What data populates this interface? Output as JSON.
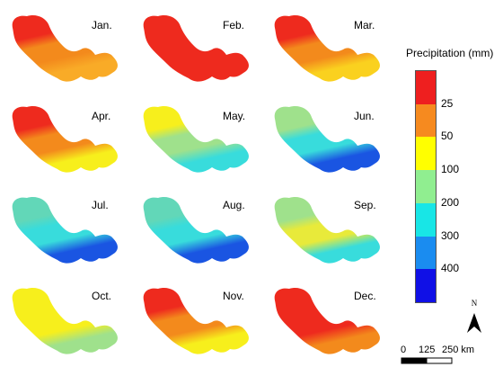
{
  "months": [
    {
      "label": "Jan.",
      "zones": [
        "#ee2a1e",
        "#f38a1c",
        "#f9ab27"
      ]
    },
    {
      "label": "Feb.",
      "zones": [
        "#ee2a1e",
        "#ee2a1e",
        "#ee2a1e"
      ]
    },
    {
      "label": "Mar.",
      "zones": [
        "#ee2a1e",
        "#f38a1c",
        "#fad11f"
      ]
    },
    {
      "label": "Apr.",
      "zones": [
        "#ee2a1e",
        "#f38a1c",
        "#f7ef1c"
      ]
    },
    {
      "label": "May.",
      "zones": [
        "#f7ef1c",
        "#9fe18c",
        "#38dcdc"
      ]
    },
    {
      "label": "Jun.",
      "zones": [
        "#9fe18c",
        "#38dcdc",
        "#1a55e2"
      ]
    },
    {
      "label": "Jul.",
      "zones": [
        "#62d7b8",
        "#38dcdc",
        "#1a55e2"
      ]
    },
    {
      "label": "Aug.",
      "zones": [
        "#62d7b8",
        "#38dcdc",
        "#1a55e2"
      ]
    },
    {
      "label": "Sep.",
      "zones": [
        "#9fe18c",
        "#e8ea3a",
        "#38dcdc"
      ]
    },
    {
      "label": "Oct.",
      "zones": [
        "#f7ef1c",
        "#f7ef1c",
        "#9fe18c"
      ]
    },
    {
      "label": "Nov.",
      "zones": [
        "#ee2a1e",
        "#f38a1c",
        "#f7ef1c"
      ]
    },
    {
      "label": "Dec.",
      "zones": [
        "#ee2a1e",
        "#ee2a1e",
        "#f38a1c"
      ]
    }
  ],
  "legend": {
    "title": "Precipitation (mm)",
    "ticks": [
      "25",
      "50",
      "100",
      "200",
      "300",
      "400"
    ],
    "colors": [
      "#ee1f1f",
      "#f68a1f",
      "#ffff00",
      "#90ee90",
      "#18e6e6",
      "#1a8cf0",
      "#1010e6"
    ]
  },
  "north": {
    "label": "N"
  },
  "scale": {
    "labels": [
      "0",
      "125",
      "250 km"
    ]
  }
}
